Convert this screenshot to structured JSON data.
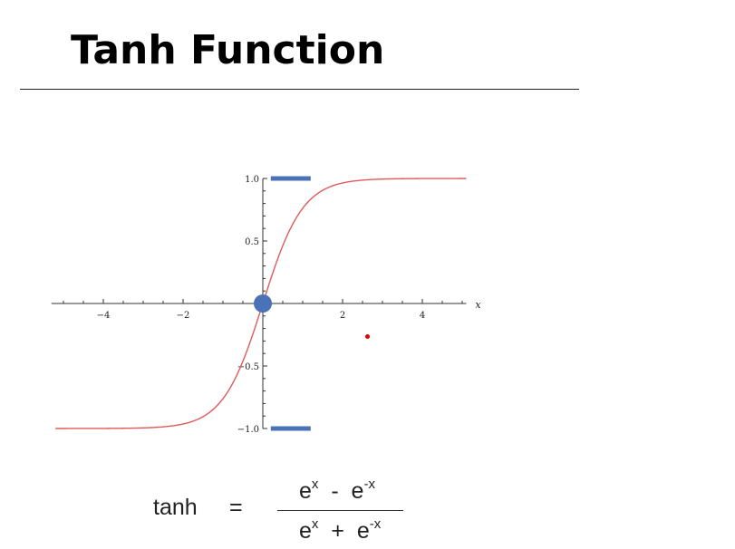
{
  "slide": {
    "title": "Tanh Function"
  },
  "chart_data": {
    "type": "line",
    "title": "",
    "xlabel": "x",
    "ylabel": "",
    "xlim": [
      -5.3,
      5.1
    ],
    "ylim": [
      -1.0,
      1.0
    ],
    "x_ticks": [
      -4,
      -2,
      2,
      4
    ],
    "x_tick_labels": [
      "−4",
      "−2",
      "2",
      "4"
    ],
    "y_ticks": [
      1.0,
      0.5,
      -0.5,
      -1.0
    ],
    "y_tick_labels": [
      "1.0",
      "0.5",
      "−0.5",
      "−1.0"
    ],
    "grid": false,
    "series": [
      {
        "function": "tanh",
        "color": "#e05a5a",
        "x": [
          -5,
          -4,
          -3,
          -2,
          -1.5,
          -1,
          -0.5,
          0,
          0.5,
          1,
          1.5,
          2,
          3,
          4,
          5
        ],
        "y": [
          -0.9999,
          -0.9993,
          -0.9951,
          -0.964,
          -0.9051,
          -0.7616,
          -0.4621,
          0,
          0.4621,
          0.7616,
          0.9051,
          0.964,
          0.9951,
          0.9993,
          0.9999
        ]
      }
    ],
    "annotations": {
      "upper_bound_bar": {
        "y": 1.0,
        "x_range": [
          0.2,
          1.2
        ],
        "color": "#4a72b8"
      },
      "lower_bound_bar": {
        "y": -1.0,
        "x_range": [
          0.2,
          1.2
        ],
        "color": "#4a72b8"
      },
      "origin_marker": {
        "x": 0,
        "y": 0,
        "color": "#4a72b8"
      }
    }
  },
  "formula": {
    "lhs": "tanh",
    "equals": "=",
    "numerator_base_1": "e",
    "numerator_exp_1": "x",
    "numerator_op": "-",
    "numerator_base_2": "e",
    "numerator_exp_2": "-x",
    "denominator_base_1": "e",
    "denominator_exp_1": "x",
    "denominator_op": "+",
    "denominator_base_2": "e",
    "denominator_exp_2": "-x"
  }
}
